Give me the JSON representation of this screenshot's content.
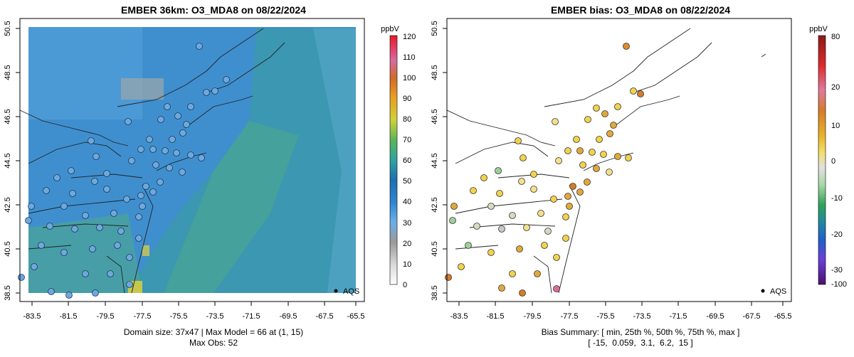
{
  "left": {
    "title": "EMBER 36km: O3_MDA8 on 08/22/2024",
    "caption_line1": "Domain size: 37x47 | Max Model = 66 at (1, 15)",
    "caption_line2": "Max Obs: 52",
    "legend_marker": "AQS",
    "colorbar": {
      "unit": "ppbV",
      "ticks": [
        "0",
        "10",
        "20",
        "30",
        "40",
        "50",
        "60",
        "70",
        "80",
        "90",
        "100",
        "110",
        "120"
      ],
      "colors": [
        "#ffffff",
        "#d9d9d9",
        "#a6a6a6",
        "#7aaee0",
        "#3c8fd6",
        "#1f78c8",
        "#3a9fb0",
        "#4fb07a",
        "#8cc24e",
        "#e6d23a",
        "#f0a020",
        "#e0602a",
        "#cc2030",
        "#d05a9a",
        "#e03040",
        "#e8102a"
      ]
    },
    "map_colors": {
      "land_model": "#4a90c8",
      "ocean_model": "#3d9aa6",
      "sites": "#6fa8dc"
    }
  },
  "right": {
    "title": "EMBER bias: O3_MDA8 on 08/22/2024",
    "caption_line1": "Bias Summary: [ min, 25th %, 50th %, 75th %, max ]",
    "caption_line2": "[ -15,  0.059,  3.1,  6.2,  15 ]",
    "legend_marker": "AQS",
    "colorbar": {
      "unit": "ppbV",
      "ticks": [
        "80",
        "20",
        "10",
        "0",
        "-10",
        "-20",
        "-30",
        "-100"
      ],
      "colors": [
        "#8b1a1a",
        "#cc2020",
        "#e24040",
        "#e06a9a",
        "#d77a2a",
        "#e8a020",
        "#f0d040",
        "#e8e8a0",
        "#d8d8d8",
        "#9ccf9c",
        "#3fa860",
        "#1a8a8a",
        "#2060c0",
        "#3030d0",
        "#7a40d0",
        "#5a1a9a"
      ]
    },
    "bias_site_colors": [
      "#f1d34a",
      "#e2a83a",
      "#f4e08a",
      "#d9d9c0",
      "#9fd09a",
      "#d77a2a",
      "#c8c8c8"
    ]
  },
  "axes": {
    "x_ticks": [
      "-83.5",
      "-81.5",
      "-79.5",
      "-77.5",
      "-75.5",
      "-73.5",
      "-71.5",
      "-69.5",
      "-67.5",
      "-65.5"
    ],
    "y_ticks": [
      "50.5",
      "48.5",
      "46.5",
      "44.5",
      "42.5",
      "40.5",
      "38.5"
    ],
    "xlim": [
      -83.5,
      -65.5
    ],
    "ylim": [
      38.5,
      50.5
    ]
  }
}
